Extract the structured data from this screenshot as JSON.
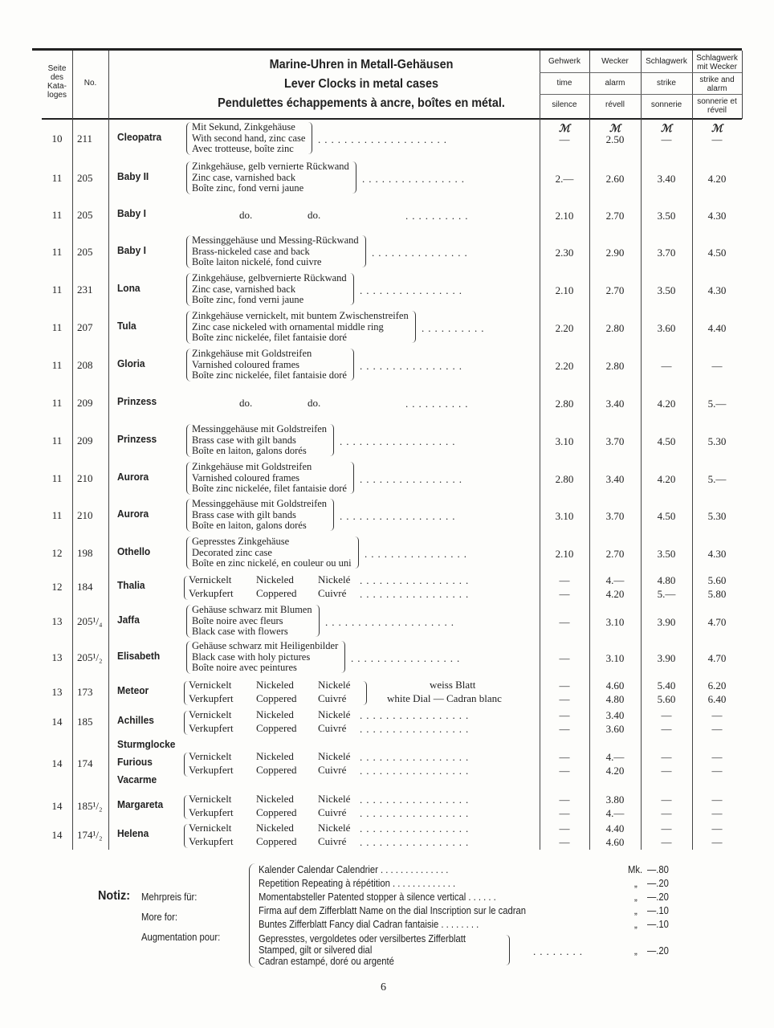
{
  "header": {
    "col_seite": [
      "Seite",
      "des",
      "Kata-",
      "loges"
    ],
    "col_no": "No.",
    "title_de": "Marine-Uhren in Metall-Gehäusen",
    "title_en": "Lever Clocks in metal cases",
    "title_fr": "Pendulettes échappements à ancre, boîtes en métal.",
    "price_cols": [
      {
        "de": "Gehwerk",
        "en": "time",
        "fr": "silence"
      },
      {
        "de": "Wecker",
        "en": "alarm",
        "fr": "révell"
      },
      {
        "de": "Schlagwerk",
        "en": "strike",
        "fr": "sonnerie"
      },
      {
        "de": "Schlagwerk mit Wecker",
        "en": "strike and alarm",
        "fr": "sonnerie et réveil"
      }
    ],
    "currency": "ℳ"
  },
  "rows": [
    {
      "seite": "10",
      "no": "211",
      "names": [
        "Cleopatra"
      ],
      "desc": [
        "Mit Sekund, Zinkgehäuse",
        "With second hand, zinc case",
        "Avec trotteuse, boîte zinc"
      ],
      "prices": [
        "—",
        "2.50",
        "—",
        "—"
      ]
    },
    {
      "seite": "11",
      "no": "205",
      "names": [
        "Baby II"
      ],
      "desc": [
        "Zinkgehäuse, gelb vernierte Rückwand",
        "Zinc case, varnished back",
        "Boîte zinc, fond verni jaune"
      ],
      "prices": [
        "2.—",
        "2.60",
        "3.40",
        "4.20"
      ]
    },
    {
      "seite": "11",
      "no": "205",
      "names": [
        "Baby I"
      ],
      "ditto": [
        "do.",
        "do."
      ],
      "prices": [
        "2.10",
        "2.70",
        "3.50",
        "4.30"
      ]
    },
    {
      "seite": "11",
      "no": "205",
      "names": [
        "Baby I"
      ],
      "desc": [
        "Messinggehäuse und Messing-Rückwand",
        "Brass-nickeled case and back",
        "Boîte laiton nickelé, fond cuivre"
      ],
      "prices": [
        "2.30",
        "2.90",
        "3.70",
        "4.50"
      ]
    },
    {
      "seite": "11",
      "no": "231",
      "names": [
        "Lona"
      ],
      "desc": [
        "Zinkgehäuse, gelbvernierte Rückwand",
        "Zinc case, varnished back",
        "Boîte zinc, fond verni jaune"
      ],
      "prices": [
        "2.10",
        "2.70",
        "3.50",
        "4.30"
      ]
    },
    {
      "seite": "11",
      "no": "207",
      "names": [
        "Tula"
      ],
      "desc": [
        "Zinkgehäuse vernickelt, mit buntem Zwischenstreifen",
        "Zinc case nickeled with ornamental middle ring",
        "Boîte zinc nickelée, filet fantaisie doré"
      ],
      "prices": [
        "2.20",
        "2.80",
        "3.60",
        "4.40"
      ]
    },
    {
      "seite": "11",
      "no": "208",
      "names": [
        "Gloria"
      ],
      "desc": [
        "Zinkgehäuse mit Goldstreifen",
        "Varnished coloured frames",
        "Boîte zinc nickelée, filet fantaisie doré"
      ],
      "prices": [
        "2.20",
        "2.80",
        "—",
        "—"
      ]
    },
    {
      "seite": "11",
      "no": "209",
      "names": [
        "Prinzess"
      ],
      "ditto": [
        "do.",
        "do."
      ],
      "prices": [
        "2.80",
        "3.40",
        "4.20",
        "5.—"
      ]
    },
    {
      "seite": "11",
      "no": "209",
      "names": [
        "Prinzess"
      ],
      "desc": [
        "Messinggehäuse mit Goldstreifen",
        "Brass case with gilt bands",
        "Boîte en laiton, galons dorés"
      ],
      "prices": [
        "3.10",
        "3.70",
        "4.50",
        "5.30"
      ]
    },
    {
      "seite": "11",
      "no": "210",
      "names": [
        "Aurora"
      ],
      "desc": [
        "Zinkgehäuse mit Goldstreifen",
        "Varnished coloured frames",
        "Boîte zinc nickelée, filet fantaisie doré"
      ],
      "prices": [
        "2.80",
        "3.40",
        "4.20",
        "5.—"
      ]
    },
    {
      "seite": "11",
      "no": "210",
      "names": [
        "Aurora"
      ],
      "desc": [
        "Messinggehäuse mit Goldstreifen",
        "Brass case with gilt bands",
        "Boîte en laiton, galons dorés"
      ],
      "prices": [
        "3.10",
        "3.70",
        "4.50",
        "5.30"
      ]
    },
    {
      "seite": "12",
      "no": "198",
      "names": [
        "Othello"
      ],
      "desc": [
        "Gepresstes Zinkgehäuse",
        "Decorated zinc case",
        "Boîte en zinc nickelé, en couleur ou uni"
      ],
      "prices": [
        "2.10",
        "2.70",
        "3.50",
        "4.30"
      ]
    },
    {
      "seite": "12",
      "no": "184",
      "names": [
        "Thalia"
      ],
      "finish": [
        [
          "Vernickelt",
          "Nickeled",
          "Nickelé"
        ],
        [
          "Verkupfert",
          "Coppered",
          "Cuivré"
        ]
      ],
      "price_lines": [
        [
          "—",
          "4.—",
          "4.80",
          "5.60"
        ],
        [
          "—",
          "4.20",
          "5.—",
          "5.80"
        ]
      ]
    },
    {
      "seite": "13",
      "no": "205¹/₄",
      "names": [
        "Jaffa"
      ],
      "desc": [
        "Gehäuse schwarz mit Blumen",
        "Boîte noire avec fleurs",
        "Black case with flowers"
      ],
      "prices": [
        "—",
        "3.10",
        "3.90",
        "4.70"
      ]
    },
    {
      "seite": "13",
      "no": "205¹/₂",
      "names": [
        "Elisabeth"
      ],
      "desc": [
        "Gehäuse schwarz mit Heiligenbilder",
        "Black case with holy pictures",
        "Boîte noire avec peintures"
      ],
      "prices": [
        "—",
        "3.10",
        "3.90",
        "4.70"
      ]
    },
    {
      "seite": "13",
      "no": "173",
      "names": [
        "Meteor"
      ],
      "finish": [
        [
          "Vernickelt",
          "Nickeled",
          "Nickelé"
        ],
        [
          "Verkupfert",
          "Coppered",
          "Cuivré"
        ]
      ],
      "dial": [
        "weiss Blatt",
        "white Dial — Cadran blanc"
      ],
      "price_lines": [
        [
          "—",
          "4.60",
          "5.40",
          "6.20"
        ],
        [
          "—",
          "4.80",
          "5.60",
          "6.40"
        ]
      ]
    },
    {
      "seite": "14",
      "no": "185",
      "names": [
        "Achilles"
      ],
      "finish": [
        [
          "Vernickelt",
          "Nickeled",
          "Nickelé"
        ],
        [
          "Verkupfert",
          "Coppered",
          "Cuivré"
        ]
      ],
      "price_lines": [
        [
          "—",
          "3.40",
          "—",
          "—"
        ],
        [
          "—",
          "3.60",
          "—",
          "—"
        ]
      ]
    },
    {
      "seite": "14",
      "no": "174",
      "names": [
        "Sturmglocke",
        "Furious",
        "Vacarme"
      ],
      "finish": [
        [
          "Vernickelt",
          "Nickeled",
          "Nickelé"
        ],
        [
          "Verkupfert",
          "Coppered",
          "Cuivré"
        ]
      ],
      "price_lines": [
        [
          "—",
          "4.—",
          "—",
          "—"
        ],
        [
          "—",
          "4.20",
          "—",
          "—"
        ]
      ]
    },
    {
      "seite": "14",
      "no": "185¹/₂",
      "names": [
        "Margareta"
      ],
      "finish": [
        [
          "Vernickelt",
          "Nickeled",
          "Nickelé"
        ],
        [
          "Verkupfert",
          "Coppered",
          "Cuivré"
        ]
      ],
      "price_lines": [
        [
          "—",
          "3.80",
          "—",
          "—"
        ],
        [
          "—",
          "4.—",
          "—",
          "—"
        ]
      ]
    },
    {
      "seite": "14",
      "no": "174¹/₂",
      "names": [
        "Helena"
      ],
      "finish": [
        [
          "Vernickelt",
          "Nickeled",
          "Nickelé"
        ],
        [
          "Verkupfert",
          "Coppered",
          "Cuivré"
        ]
      ],
      "price_lines": [
        [
          "—",
          "4.40",
          "—",
          "—"
        ],
        [
          "—",
          "4.60",
          "—",
          "—"
        ]
      ]
    }
  ],
  "notes": {
    "label": "Notiz:",
    "labels": [
      "Mehrpreis für:",
      "More for:",
      "Augmentation pour:"
    ],
    "items": [
      {
        "text": "Kalender    Calendar    Calendrier . . . . . . . . . . . . . .",
        "unit": "Mk.",
        "price": "—.80"
      },
      {
        "text": "Repetition    Repeating    à répétition . . . . . . . . . . . . .",
        "unit": "„",
        "price": "—.20"
      },
      {
        "text": "Momentabsteller    Patented stopper    à silence vertical . . . . . .",
        "unit": "„",
        "price": "—.20"
      },
      {
        "text": "Firma auf dem Zifferblatt    Name on the dial    Inscription sur le cadran",
        "unit": "„",
        "price": "—.10"
      },
      {
        "text": "Buntes Zifferblatt    Fancy dial    Cadran fantaisie . . . . . . . .",
        "unit": "„",
        "price": "—.10"
      }
    ],
    "dial_lines": [
      "Gepresstes, vergoldetes oder versilbertes Zifferblatt",
      "Stamped, gilt or silvered dial",
      "Cadran estampé, doré ou argenté"
    ],
    "dial_unit": "„",
    "dial_price": "—.20"
  },
  "page_number": "6"
}
